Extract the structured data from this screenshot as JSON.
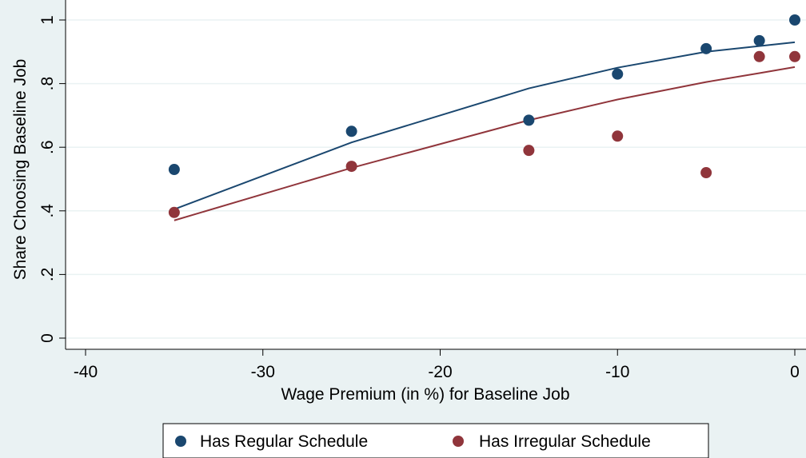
{
  "chart_data": {
    "type": "scatter",
    "xlabel": "Wage Premium (in %) for Baseline Job",
    "ylabel": "Share Choosing Baseline Job",
    "xlim": [
      -40,
      0
    ],
    "ylim": [
      0,
      1
    ],
    "xticks": [
      -40,
      -30,
      -20,
      -10,
      0
    ],
    "xtick_labels": [
      "-40",
      "-30",
      "-20",
      "-10",
      "0"
    ],
    "yticks": [
      0,
      0.2,
      0.4,
      0.6,
      0.8,
      1
    ],
    "ytick_labels": [
      "0",
      ".2",
      ".4",
      ".6",
      ".8",
      "1"
    ],
    "grid": "horizontal",
    "legend_position": "bottom",
    "series": [
      {
        "name": "Has Regular Schedule",
        "color": "#1a476f",
        "points": [
          {
            "x": -35,
            "y": 0.53
          },
          {
            "x": -25,
            "y": 0.65
          },
          {
            "x": -15,
            "y": 0.685
          },
          {
            "x": -10,
            "y": 0.83
          },
          {
            "x": -5,
            "y": 0.91
          },
          {
            "x": -2,
            "y": 0.935
          },
          {
            "x": 0,
            "y": 1.0
          }
        ],
        "fit": [
          {
            "x": -35,
            "y": 0.405
          },
          {
            "x": -25,
            "y": 0.615
          },
          {
            "x": -15,
            "y": 0.785
          },
          {
            "x": -10,
            "y": 0.85
          },
          {
            "x": -5,
            "y": 0.9
          },
          {
            "x": -2,
            "y": 0.918
          },
          {
            "x": 0,
            "y": 0.93
          }
        ]
      },
      {
        "name": "Has Irregular Schedule",
        "color": "#90353b",
        "points": [
          {
            "x": -35,
            "y": 0.395
          },
          {
            "x": -25,
            "y": 0.54
          },
          {
            "x": -15,
            "y": 0.59
          },
          {
            "x": -10,
            "y": 0.635
          },
          {
            "x": -5,
            "y": 0.52
          },
          {
            "x": -2,
            "y": 0.885
          },
          {
            "x": 0,
            "y": 0.885
          }
        ],
        "fit": [
          {
            "x": -35,
            "y": 0.37
          },
          {
            "x": -25,
            "y": 0.535
          },
          {
            "x": -15,
            "y": 0.685
          },
          {
            "x": -10,
            "y": 0.75
          },
          {
            "x": -5,
            "y": 0.805
          },
          {
            "x": -2,
            "y": 0.833
          },
          {
            "x": 0,
            "y": 0.852
          }
        ]
      }
    ]
  }
}
